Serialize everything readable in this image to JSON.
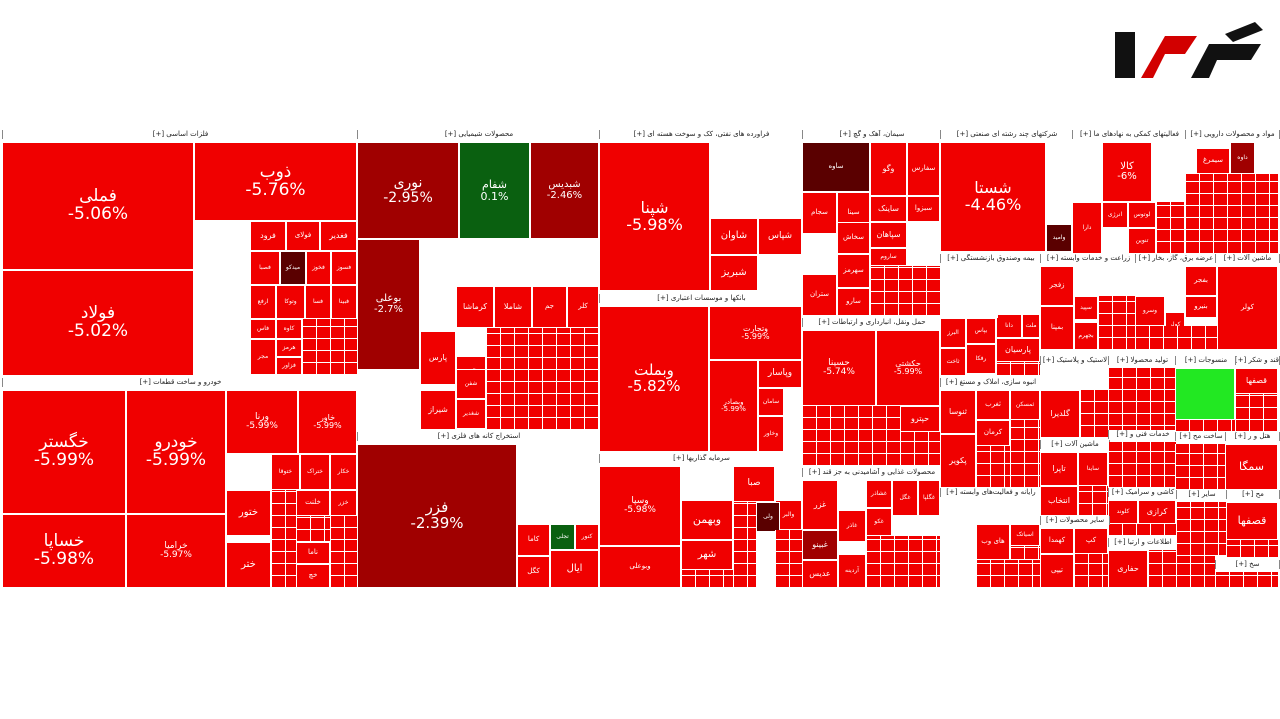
{
  "logo": {
    "text": "رکنا"
  },
  "colors": {
    "red": "#f00000",
    "dark_red": "#a00000",
    "darker_red": "#5a0000",
    "dark_green": "#0a6010",
    "light_green": "#22e822"
  },
  "chart_data": {
    "type": "treemap",
    "sectors": [
      {
        "name": "فلزات اساسی [+]"
      },
      {
        "name": "محصولات شیمیایی [+]"
      },
      {
        "name": "فراورده های نفتی، کک و سوخت هسته ای [+]"
      },
      {
        "name": "سیمان، آهک و گچ [+]"
      },
      {
        "name": "شرکتهای چند رشته ای صنعتی [+]"
      },
      {
        "name": "فعالیتهای کمکی به نهادهای ما [+]"
      },
      {
        "name": "مواد و محصولات دارویی [+]"
      },
      {
        "name": "خودرو و ساخت قطعات [+]"
      },
      {
        "name": "استخراج کانه های فلزی [+]"
      },
      {
        "name": "بانکها و موسسات اعتباری [+]"
      },
      {
        "name": "سرمایه گذاریها [+]"
      },
      {
        "name": "حمل ونقل، انبارداری و ارتباطات [+]"
      },
      {
        "name": "محصولات غذایی و آشامیدنی به جز قند [+]"
      },
      {
        "name": "بیمه وصندوق بازنشستگی [+]"
      },
      {
        "name": "زراعت و خدمات وابسته [+]"
      },
      {
        "name": "عرضه برق، گاز، بخار [+]"
      },
      {
        "name": "ماشین آلات [+]"
      },
      {
        "name": "انبوه سازی، املاک و مستغ [+]"
      },
      {
        "name": "لاستیک و پلاستیک [+]"
      },
      {
        "name": "تولید محصولا [+]"
      },
      {
        "name": "منسوجات [+]"
      },
      {
        "name": "قند و شکر [+]"
      },
      {
        "name": "رایانه و فعالیت‌های وابسته [+]"
      },
      {
        "name": "ماشین آلات و [+]"
      },
      {
        "name": "خدمات فنی و [+]"
      },
      {
        "name": "ساخت مح [+]"
      },
      {
        "name": "سایر محصولات [+]"
      },
      {
        "name": "کاشی و سرامیک [+]"
      },
      {
        "name": "سایر [+]"
      },
      {
        "name": "اطلاعات و ارتبا [+]"
      },
      {
        "name": "هتل و ر [+]"
      },
      {
        "name": "مح [+]"
      },
      {
        "name": "سخ [+]"
      }
    ],
    "stocks": [
      {
        "name": "فملی",
        "change": -5.06,
        "change_label": "-5.06%"
      },
      {
        "name": "فولاد",
        "change": -5.02,
        "change_label": "-5.02%"
      },
      {
        "name": "ذوب",
        "change": -5.76,
        "change_label": "-5.76%"
      },
      {
        "name": "فولای"
      },
      {
        "name": "فرود"
      },
      {
        "name": "فغدیر"
      },
      {
        "name": "میدکو"
      },
      {
        "name": "فخوز"
      },
      {
        "name": "فسوز"
      },
      {
        "name": "فصبا"
      },
      {
        "name": "ارفع"
      },
      {
        "name": "وتوکا"
      },
      {
        "name": "فسا"
      },
      {
        "name": "فبینا"
      },
      {
        "name": "کاوه"
      },
      {
        "name": "فاس"
      },
      {
        "name": "هرمز"
      },
      {
        "name": "مجر"
      },
      {
        "name": "فزاور"
      },
      {
        "name": "خگستر",
        "change": -5.99,
        "change_label": "-5.99%"
      },
      {
        "name": "خساپا",
        "change": -5.98,
        "change_label": "-5.98%"
      },
      {
        "name": "خودرو",
        "change": -5.99,
        "change_label": "-5.99%"
      },
      {
        "name": "خراميا",
        "change": -5.97,
        "change_label": "-5.97%"
      },
      {
        "name": "ورنا",
        "change": -5.99,
        "change_label": "-5.99%"
      },
      {
        "name": "خاور",
        "change": -5.99,
        "change_label": "-5.99%"
      },
      {
        "name": "خکار"
      },
      {
        "name": "ختراک"
      },
      {
        "name": "ختوقا"
      },
      {
        "name": "خزر"
      },
      {
        "name": "خلنت"
      },
      {
        "name": "ختور"
      },
      {
        "name": "ناما"
      },
      {
        "name": "ختر"
      },
      {
        "name": "خچ"
      },
      {
        "name": "فتر"
      },
      {
        "name": "نوری",
        "change": -2.95,
        "change_label": "-2.95%"
      },
      {
        "name": "شفام",
        "change": 0.1,
        "change_label": "0.1%"
      },
      {
        "name": "شبديس",
        "change": -2.46,
        "change_label": "-2.46%"
      },
      {
        "name": "بوعلی",
        "change": -2.7,
        "change_label": "-2.7%"
      },
      {
        "name": "کلر"
      },
      {
        "name": "جم"
      },
      {
        "name": "شاملا"
      },
      {
        "name": "کرماشا"
      },
      {
        "name": "پارس"
      },
      {
        "name": "آریا"
      },
      {
        "name": "شفن"
      },
      {
        "name": "شیراز"
      },
      {
        "name": "شغدیر"
      },
      {
        "name": "فزر",
        "change": -2.39,
        "change_label": "-2.39%"
      },
      {
        "name": "تجلی"
      },
      {
        "name": "کنور"
      },
      {
        "name": "کاما"
      },
      {
        "name": "کگل"
      },
      {
        "name": "ایال"
      },
      {
        "name": "شپنا",
        "change": -5.98,
        "change_label": "-5.98%"
      },
      {
        "name": "شاوان"
      },
      {
        "name": "شبریز"
      },
      {
        "name": "شپاس"
      },
      {
        "name": "وبملت",
        "change": -5.82,
        "change_label": "-5.82%"
      },
      {
        "name": "وتجارت",
        "change": -5.99,
        "change_label": "-5.99%"
      },
      {
        "name": "وبصادر",
        "change": -5.99,
        "change_label": "-5.99%"
      },
      {
        "name": "وپاسار"
      },
      {
        "name": "سامان"
      },
      {
        "name": "وخاور"
      },
      {
        "name": "وسپا",
        "change": -5.98,
        "change_label": "-5.98%"
      },
      {
        "name": "وبهمن"
      },
      {
        "name": "شهر"
      },
      {
        "name": "وبوعلی"
      },
      {
        "name": "صبا"
      },
      {
        "name": "والبر"
      },
      {
        "name": "ولی"
      },
      {
        "name": "وگو"
      },
      {
        "name": "سفارس"
      },
      {
        "name": "سجام"
      },
      {
        "name": "ساوه"
      },
      {
        "name": "سینا"
      },
      {
        "name": "سبزوا"
      },
      {
        "name": "ساینک"
      },
      {
        "name": "سپاهان"
      },
      {
        "name": "سخاش"
      },
      {
        "name": "سهرمز"
      },
      {
        "name": "ستران"
      },
      {
        "name": "سارو"
      },
      {
        "name": "ساروم"
      },
      {
        "name": "حسینا",
        "change": -5.74,
        "change_label": "-5.74%"
      },
      {
        "name": "حکشتی",
        "change": -5.99,
        "change_label": "-5.99%"
      },
      {
        "name": "حپترو"
      },
      {
        "name": "حفارس"
      },
      {
        "name": "غزر"
      },
      {
        "name": "غبینو"
      },
      {
        "name": "عدیس"
      },
      {
        "name": "غگل"
      },
      {
        "name": "غکو"
      },
      {
        "name": "غاذر"
      },
      {
        "name": "غگلپا"
      },
      {
        "name": "غشاذر"
      },
      {
        "name": "آردینه"
      },
      {
        "name": "شستا",
        "change": -4.46,
        "change_label": "-4.46%"
      },
      {
        "name": "وامید"
      },
      {
        "name": "کالا",
        "change": -6.0,
        "change_label": "-6%"
      },
      {
        "name": "لوتوس"
      },
      {
        "name": "انرژی"
      },
      {
        "name": "تنوین"
      },
      {
        "name": "دارا"
      },
      {
        "name": "داوه"
      },
      {
        "name": "سیمرغ"
      },
      {
        "name": "زکوثر"
      },
      {
        "name": "زفجر"
      },
      {
        "name": "سپید"
      },
      {
        "name": "بجهرم"
      },
      {
        "name": "بمپنا"
      },
      {
        "name": "بفجر"
      },
      {
        "name": "بنیرو"
      },
      {
        "name": "وسرو"
      },
      {
        "name": "کولر"
      },
      {
        "name": "البرز"
      },
      {
        "name": "بپاس"
      },
      {
        "name": "دانا"
      },
      {
        "name": "ملت"
      },
      {
        "name": "رفکا"
      },
      {
        "name": "پارسیان"
      },
      {
        "name": "ثاخت"
      },
      {
        "name": "ثنوسا"
      },
      {
        "name": "ثغرب"
      },
      {
        "name": "ثمسکن"
      },
      {
        "name": "کرمان"
      },
      {
        "name": "پکویر"
      },
      {
        "name": "گلدیرا"
      },
      {
        "name": "تاپرا"
      },
      {
        "name": "انتخاب"
      },
      {
        "name": "ساینا"
      },
      {
        "name": "کلوند"
      },
      {
        "name": "کرازی"
      },
      {
        "name": "کهمدا"
      },
      {
        "name": "کپ"
      },
      {
        "name": "تیپی"
      },
      {
        "name": "های وب"
      },
      {
        "name": "اسیاتک"
      },
      {
        "name": "حفاری"
      },
      {
        "name": "قصفها"
      },
      {
        "name": "سمگا"
      },
      {
        "name": "افق"
      }
    ]
  }
}
